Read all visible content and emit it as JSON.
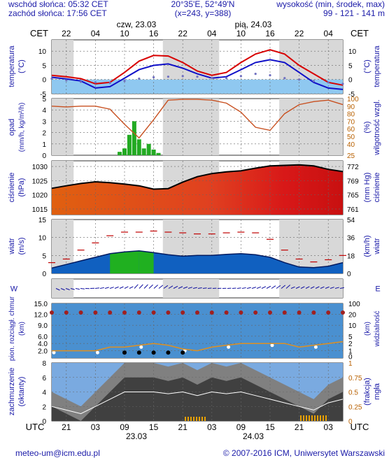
{
  "header": {
    "sunrise": "wschód słońca: 05:32 CET",
    "sunset": "zachód słońca: 17:56 CET",
    "coords": "20°35'E, 52°49'N",
    "grid": "(x=243, y=388)",
    "altitude_title": "wysokość (min, środek, max)",
    "altitude_values": "99 - 121 - 141 m"
  },
  "top_axis": {
    "left_label": "CET",
    "right_label": "CET",
    "hours": [
      "22",
      "04",
      "10",
      "16",
      "22",
      "04",
      "10",
      "16",
      "22",
      "04"
    ],
    "day1": "czw, 23.03",
    "day2": "pią, 24.03"
  },
  "bottom_axis": {
    "left_label": "UTC",
    "right_label": "UTC",
    "hours": [
      "21",
      "03",
      "09",
      "15",
      "21",
      "03",
      "09",
      "15",
      "21",
      "03"
    ],
    "date1": "23.03",
    "date2": "24.03"
  },
  "footer": {
    "email": "meteo-um@icm.edu.pl",
    "copyright": "© 2007-2016 ICM, Uniwersytet Warszawski"
  },
  "colors": {
    "temp_max": "#d80000",
    "temp_mean": "#1010c8",
    "dewpoint": "#7070c0",
    "sky": "#8fc8f0",
    "rain": "#22aa22",
    "humidity": "#c85020",
    "wind_gust": "#c00000",
    "wind_blue": "#1060c0",
    "wind_green": "#20b020",
    "pressure_line": "#000000",
    "cloud_dark": "#404040",
    "fog": "#e8a000"
  },
  "chart_data": [
    {
      "type": "line",
      "title": "temperatura",
      "ylabel": "temperatura (°C)",
      "ylim": [
        -5,
        14
      ],
      "yticks": [
        "10",
        "5",
        "0",
        "-5"
      ],
      "x_hours_cet": [
        19,
        22,
        1,
        4,
        7,
        10,
        13,
        16,
        19,
        22,
        1,
        4,
        7,
        10,
        13,
        16,
        19,
        22,
        1,
        4,
        7
      ],
      "series": [
        {
          "name": "max",
          "values": [
            1.5,
            1.0,
            0.3,
            -1.5,
            -1.0,
            2.5,
            6.5,
            8.5,
            8.3,
            6.0,
            3.0,
            1.5,
            2.5,
            6.0,
            9.0,
            10.5,
            9.0,
            5.0,
            2.0,
            -1.0,
            -2.0
          ]
        },
        {
          "name": "mean",
          "values": [
            0.8,
            0.2,
            -0.5,
            -3.0,
            -2.5,
            0.5,
            3.5,
            5.0,
            5.5,
            4.0,
            2.0,
            0.5,
            1.0,
            3.5,
            6.0,
            7.0,
            6.0,
            2.5,
            -1.0,
            -3.0,
            -3.5
          ]
        },
        {
          "name": "dew",
          "values": [
            0.3,
            -0.3,
            -0.8,
            -1.0,
            -1.2,
            -0.5,
            0.3,
            0.8,
            1.0,
            1.2,
            1.0,
            0.6,
            0.5,
            1.2,
            2.0,
            1.5,
            0.5,
            0.0,
            -0.5,
            -1.0,
            -1.5
          ]
        }
      ]
    },
    {
      "type": "bar",
      "title": "opad",
      "ylabel": "opad (mm/h, kg/m²/h)",
      "ylim": [
        0,
        5
      ],
      "yticks": [
        "5",
        "4",
        "3",
        "2",
        "1",
        "0"
      ],
      "y2label": "wilgotność wzgl. (%)",
      "y2ticks": [
        "100",
        "90",
        "80",
        "70",
        "60",
        "50",
        "40",
        "25"
      ],
      "precip_hours_cet": [
        9,
        10,
        11,
        12,
        13,
        14,
        15,
        16,
        17
      ],
      "precip_values": [
        0.3,
        0.6,
        1.8,
        3.0,
        1.4,
        0.6,
        1.0,
        0.5,
        0.2
      ],
      "humidity_hours_cet": [
        19,
        22,
        1,
        4,
        7,
        10,
        13,
        16,
        19,
        22,
        1,
        4,
        7,
        10,
        13,
        16,
        19,
        22,
        1,
        4,
        7
      ],
      "humidity_values": [
        90,
        89,
        90,
        90,
        86,
        66,
        48,
        72,
        98,
        99,
        99,
        98,
        94,
        82,
        62,
        58,
        80,
        92,
        96,
        98,
        92
      ]
    },
    {
      "type": "area",
      "title": "ciśnienie",
      "ylabel": "ciśnienie (hPa)",
      "ylim": [
        1013,
        1032
      ],
      "yticks": [
        "1030",
        "1025",
        "1020",
        "1015"
      ],
      "y2label": "ciśnienie (mm Hg)",
      "y2ticks": [
        "772",
        "769",
        "765",
        "761"
      ],
      "x_hours_cet": [
        19,
        22,
        1,
        4,
        7,
        10,
        13,
        16,
        19,
        22,
        1,
        4,
        7,
        10,
        13,
        16,
        19,
        22,
        1,
        4,
        7
      ],
      "values": [
        1022.3,
        1023.2,
        1024.0,
        1024.6,
        1024.3,
        1023.8,
        1023.2,
        1022.0,
        1022.2,
        1024.5,
        1026.4,
        1027.5,
        1028.1,
        1028.5,
        1029.4,
        1030.2,
        1030.4,
        1030.6,
        1030.2,
        1029.0,
        1028.2
      ]
    },
    {
      "type": "area",
      "title": "wiatr",
      "ylabel": "wiatr (m/s)",
      "ylim": [
        0,
        15
      ],
      "yticks": [
        "15",
        "10",
        "5",
        "0"
      ],
      "y2label": "wiatr (km/h)",
      "y2ticks": [
        "54",
        "36",
        "18",
        "0"
      ],
      "x_hours_cet": [
        19,
        22,
        1,
        4,
        7,
        10,
        13,
        16,
        19,
        22,
        1,
        4,
        7,
        10,
        13,
        16,
        19,
        22,
        1,
        4,
        7
      ],
      "wind": [
        1.5,
        2.5,
        3.5,
        4.5,
        5.5,
        6.0,
        6.3,
        5.8,
        5.2,
        4.8,
        5.0,
        5.0,
        5.3,
        5.5,
        5.2,
        4.5,
        3.0,
        1.8,
        1.6,
        2.0,
        3.0
      ],
      "gust": [
        3,
        4,
        6.5,
        8.5,
        10.5,
        11.5,
        11.5,
        11.8,
        11.5,
        11.3,
        11.0,
        11.0,
        11.3,
        11.5,
        11.3,
        9.5,
        6.5,
        4.0,
        3.2,
        3.8,
        5.0
      ]
    },
    {
      "type": "scatter",
      "title": "widzialność",
      "ylabel": "pion. rozciągł. chmur (km)",
      "ylim": [
        0,
        15
      ],
      "yticks": [
        "15.0",
        "12.0",
        "9.0",
        "6.0",
        "4.0",
        "2.0"
      ],
      "y2label": "widzialność (km)",
      "y2ticks": [
        "100",
        "20",
        "10",
        "5",
        "2",
        "1",
        "0"
      ],
      "x_hours_cet": [
        19,
        22,
        1,
        4,
        7,
        10,
        13,
        16,
        19,
        22,
        1,
        4,
        7,
        10,
        13,
        16,
        19,
        22,
        1,
        4,
        7
      ],
      "visibility": [
        2.0,
        2.0,
        2.0,
        2.0,
        3.0,
        3.0,
        3.5,
        4.0,
        3.5,
        2.5,
        2.0,
        3.0,
        3.5,
        4.0,
        4.0,
        4.0,
        4.0,
        3.0,
        3.5,
        4.0,
        4.5
      ]
    },
    {
      "type": "area",
      "title": "zachmurzenie",
      "ylabel": "zachmurzenie (oktanty)",
      "ylim": [
        0,
        8
      ],
      "yticks": [
        "8",
        "6",
        "4",
        "2",
        "0"
      ],
      "y2label": "mgła (frakcja)",
      "y2ticks": [
        "1",
        "0.75",
        "0.5",
        "0.25",
        "0"
      ],
      "x_hours_cet": [
        19,
        22,
        1,
        4,
        7,
        10,
        13,
        16,
        19,
        22,
        1,
        4,
        7,
        10,
        13,
        16,
        19,
        22,
        1,
        4,
        7
      ],
      "total_cloud": [
        4,
        3,
        2,
        4,
        6,
        8,
        8,
        8,
        7.5,
        8,
        7,
        8,
        7.5,
        8,
        7,
        6,
        5,
        4,
        3,
        5,
        6
      ]
    }
  ]
}
